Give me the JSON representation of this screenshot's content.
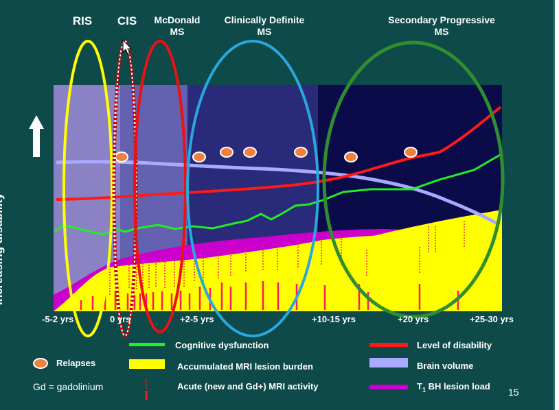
{
  "stages": {
    "ris": "RIS",
    "cis": "CIS",
    "mcdonald": "McDonald\nMS",
    "definite": "Clinically Definite\nMS",
    "secondary": "Secondary Progressive\nMS"
  },
  "axis": {
    "ylabel": "Increasing disability",
    "ticks": [
      "-5-2 yrs",
      "0 yrs",
      "+2-5 yrs",
      "+10-15 yrs",
      "+20 yrs",
      "+25-30 yrs"
    ]
  },
  "legend": {
    "relapses": "Relapses",
    "gd": "Gd = gadolinium",
    "cognitive": "Cognitive dysfunction",
    "mri_burden": "Accumulated MRI lesion burden",
    "acute": "Acute (new and Gd+) MRI activity",
    "disability": "Level of disability",
    "brain_volume": "Brain volume",
    "t1_prefix": "T",
    "t1_sub": "1",
    "t1_rest": " BH lesion load"
  },
  "page_number": "15",
  "colors": {
    "background": "#0e4a4a",
    "disability": "#ff1a1a",
    "cognitive": "#22ee22",
    "brain_volume": "#a9a9ff",
    "t1_load": "#cc00cc",
    "mri_burden": "#ffff00",
    "relapse": "#f08040",
    "ris_ellipse": "#ffff00",
    "mcdonald_ellipse": "#ee1111",
    "definite_ellipse": "#2aa7dd",
    "secondary_ellipse": "#2f8f2f"
  }
}
